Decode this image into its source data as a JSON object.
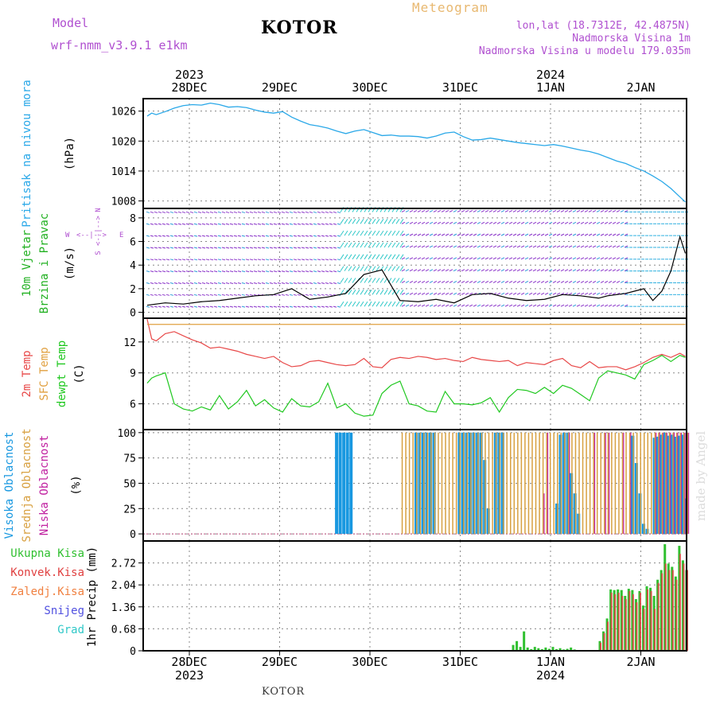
{
  "header": {
    "model_label": "Model",
    "model_name": "wrf-nmm_v3.9.1  e1km",
    "title": "KOTOR",
    "meteogram": "Meteogram",
    "lonlat": "lon,lat (18.7312E, 42.4875N)",
    "altitude": "Nadmorska Visina 1m",
    "model_altitude": "Nadmorska Visina u modelu 179.035m",
    "footer_title": "KOTOR",
    "watermark": "made by Angel"
  },
  "colors": {
    "pressure": "#2aa8e8",
    "temp": "#e84848",
    "sfc_temp": "#e0a040",
    "dewpt": "#20c820",
    "cloud_high": "#1898e0",
    "cloud_mid": "#d8a040",
    "cloud_low": "#c020a0",
    "precip_total": "#30c030",
    "precip_conv": "#e04040",
    "purple": "#b050d0"
  },
  "axes": {
    "x_top_years": [
      "2023",
      "2024"
    ],
    "x_dates": [
      "28DEC",
      "29DEC",
      "30DEC",
      "31DEC",
      "1JAN",
      "2JAN"
    ],
    "x_bottom_years": [
      "2023",
      "2024"
    ]
  },
  "chart_data": [
    {
      "type": "line",
      "panel": "pressure",
      "ylabel_main": "Pritisak na nivou mora",
      "ylabel_unit": "(hPa)",
      "yticks": [
        "1026",
        "1020",
        "1014",
        "1008"
      ],
      "ylim": [
        1006.5,
        1028.5
      ],
      "x_days": [
        0,
        0.05,
        0.1,
        0.2,
        0.3,
        0.4,
        0.5,
        0.6,
        0.7,
        0.8,
        0.9,
        1.0,
        1.1,
        1.2,
        1.3,
        1.4,
        1.5,
        1.6,
        1.7,
        1.8,
        1.9,
        2.0,
        2.1,
        2.2,
        2.3,
        2.4,
        2.5,
        2.6,
        2.7,
        2.8,
        2.9,
        3.0,
        3.1,
        3.2,
        3.3,
        3.4,
        3.5,
        3.6,
        3.7,
        3.8,
        3.9,
        4.0,
        4.1,
        4.2,
        4.3,
        4.4,
        4.5,
        4.6,
        4.7,
        4.8,
        4.9,
        5.0,
        5.1,
        5.2,
        5.3,
        5.4,
        5.5,
        5.6,
        5.7,
        5.8,
        5.9,
        5.96
      ],
      "series": [
        {
          "name": "Pritisak na nivou mora",
          "values": [
            1025.0,
            1025.6,
            1025.3,
            1025.9,
            1026.6,
            1027.1,
            1027.3,
            1027.2,
            1027.6,
            1027.3,
            1026.8,
            1026.9,
            1026.7,
            1026.2,
            1025.8,
            1025.6,
            1025.9,
            1024.8,
            1024.0,
            1023.3,
            1023.0,
            1022.6,
            1022.0,
            1021.5,
            1022.0,
            1022.3,
            1021.7,
            1021.1,
            1021.2,
            1021.0,
            1021.0,
            1020.9,
            1020.6,
            1021.0,
            1021.6,
            1021.8,
            1020.9,
            1020.2,
            1020.3,
            1020.6,
            1020.3,
            1020.0,
            1019.7,
            1019.5,
            1019.3,
            1019.1,
            1019.3,
            1019.0,
            1018.6,
            1018.2,
            1017.9,
            1017.4,
            1016.7,
            1016.0,
            1015.5,
            1014.7,
            1014.0,
            1013.0,
            1011.9,
            1010.5,
            1008.8,
            1007.8
          ]
        }
      ]
    },
    {
      "type": "line",
      "panel": "wind",
      "ylabel_main": [
        "10m Vjetar",
        "Brzina i Pravac"
      ],
      "ylabel_unit": "(m/s)",
      "compass": [
        "W",
        "<--|-->",
        "E",
        "S",
        "<--|-->",
        "N"
      ],
      "yticks": [
        "8",
        "6",
        "4",
        "2",
        "0"
      ],
      "ylim": [
        -0.5,
        8.8
      ],
      "x_days": [
        0,
        0.2,
        0.4,
        0.6,
        0.8,
        1.0,
        1.2,
        1.4,
        1.6,
        1.8,
        2.0,
        2.2,
        2.4,
        2.6,
        2.8,
        3.0,
        3.2,
        3.4,
        3.6,
        3.8,
        4.0,
        4.2,
        4.4,
        4.6,
        4.8,
        5.0,
        5.1,
        5.2,
        5.3,
        5.4,
        5.5,
        5.6,
        5.7,
        5.8,
        5.9,
        5.96
      ],
      "series": [
        {
          "name": "Brzina i Pravac",
          "values": [
            0.6,
            0.8,
            0.7,
            0.9,
            1.0,
            1.2,
            1.4,
            1.5,
            2.0,
            1.1,
            1.3,
            1.6,
            3.2,
            3.6,
            1.0,
            0.9,
            1.1,
            0.8,
            1.5,
            1.6,
            1.2,
            1.0,
            1.1,
            1.5,
            1.4,
            1.2,
            1.4,
            1.5,
            1.6,
            1.8,
            2.0,
            1.0,
            1.8,
            3.5,
            6.4,
            5.0
          ]
        }
      ]
    },
    {
      "type": "line",
      "panel": "temperature",
      "ylabel_main": [
        "2m Temp",
        "SFC Temp",
        "dewpt Temp"
      ],
      "ylabel_unit": "(C)",
      "yticks": [
        "12",
        "9",
        "6"
      ],
      "ylim": [
        3.5,
        14.3
      ],
      "x_days": [
        0,
        0.05,
        0.1,
        0.2,
        0.3,
        0.4,
        0.5,
        0.6,
        0.7,
        0.8,
        0.9,
        1.0,
        1.1,
        1.2,
        1.3,
        1.4,
        1.5,
        1.6,
        1.7,
        1.8,
        1.9,
        2.0,
        2.1,
        2.2,
        2.3,
        2.4,
        2.5,
        2.6,
        2.7,
        2.8,
        2.9,
        3.0,
        3.1,
        3.2,
        3.3,
        3.4,
        3.5,
        3.6,
        3.7,
        3.8,
        3.9,
        4.0,
        4.1,
        4.2,
        4.3,
        4.4,
        4.5,
        4.6,
        4.7,
        4.8,
        4.9,
        5.0,
        5.1,
        5.2,
        5.3,
        5.4,
        5.5,
        5.6,
        5.7,
        5.8,
        5.9,
        5.96
      ],
      "series": [
        {
          "name": "2m Temp",
          "values": [
            14.2,
            12.3,
            12.1,
            12.8,
            13.0,
            12.6,
            12.2,
            11.9,
            11.4,
            11.5,
            11.3,
            11.1,
            10.8,
            10.6,
            10.4,
            10.6,
            10.0,
            9.6,
            9.7,
            10.1,
            10.2,
            10.0,
            9.8,
            9.7,
            9.8,
            10.4,
            9.6,
            9.5,
            10.3,
            10.5,
            10.4,
            10.6,
            10.5,
            10.3,
            10.4,
            10.2,
            10.1,
            10.5,
            10.3,
            10.2,
            10.1,
            10.2,
            9.7,
            10.0,
            9.9,
            9.8,
            10.2,
            10.4,
            9.7,
            9.5,
            10.1,
            9.5,
            9.6,
            9.6,
            9.3,
            9.6,
            10.0,
            10.5,
            10.8,
            10.5,
            10.9,
            10.6
          ]
        },
        {
          "name": "SFC Temp",
          "values": [
            13.7,
            13.7,
            13.7,
            13.7,
            13.7,
            13.7,
            13.7,
            13.7,
            13.7,
            13.7,
            13.7,
            13.7,
            13.7,
            13.7,
            13.7,
            13.7,
            13.7,
            13.7,
            13.7,
            13.7,
            13.7,
            13.7,
            13.7,
            13.7,
            13.7,
            13.7,
            13.7,
            13.7,
            13.7,
            13.7,
            13.7,
            13.7,
            13.7,
            13.7,
            13.7,
            13.7,
            13.7,
            13.7,
            13.7,
            13.7,
            13.7,
            13.7,
            13.7,
            13.7,
            13.7,
            13.7,
            13.7,
            13.7,
            13.7,
            13.7,
            13.7,
            13.7,
            13.7,
            13.7,
            13.7,
            13.7,
            13.7,
            13.7,
            13.7,
            13.7,
            13.7,
            13.7
          ]
        },
        {
          "name": "dewpt Temp",
          "values": [
            8.0,
            8.5,
            8.7,
            9.0,
            6.0,
            5.5,
            5.3,
            5.7,
            5.4,
            6.8,
            5.5,
            6.2,
            7.3,
            5.8,
            6.4,
            5.6,
            5.2,
            6.5,
            5.8,
            5.7,
            6.2,
            8.0,
            5.6,
            6.0,
            5.1,
            4.8,
            4.9,
            7.0,
            7.8,
            8.2,
            6.0,
            5.8,
            5.3,
            5.2,
            7.2,
            6.0,
            6.0,
            5.9,
            6.1,
            6.6,
            5.2,
            6.6,
            7.4,
            7.3,
            7.0,
            7.6,
            7.0,
            7.8,
            7.5,
            6.9,
            6.3,
            8.5,
            9.2,
            9.0,
            8.8,
            8.4,
            9.8,
            10.2,
            10.7,
            10.1,
            10.7,
            10.5
          ]
        }
      ]
    },
    {
      "type": "bar",
      "panel": "clouds",
      "ylabel_main": [
        "Visoka Oblacnost",
        "Srednja Oblacnost",
        "Niska Oblacnost"
      ],
      "ylabel_unit": "(%)",
      "yticks": [
        "100",
        "75",
        "50",
        "25",
        "0"
      ],
      "ylim": [
        -7,
        103
      ],
      "x_days": [
        2.08,
        2.12,
        2.16,
        2.2,
        2.24,
        2.8,
        2.84,
        2.88,
        2.92,
        2.96,
        3.0,
        3.04,
        3.08,
        3.12,
        3.16,
        3.2,
        3.24,
        3.28,
        3.32,
        3.36,
        3.4,
        3.44,
        3.48,
        3.52,
        3.56,
        3.6,
        3.64,
        3.68,
        3.72,
        3.76,
        3.8,
        3.84,
        3.88,
        3.92,
        3.96,
        4.0,
        4.04,
        4.08,
        4.12,
        4.16,
        4.2,
        4.24,
        4.28,
        4.32,
        4.36,
        4.4,
        4.44,
        4.48,
        4.52,
        4.56,
        4.6,
        4.64,
        4.68,
        4.72,
        4.76,
        4.8,
        4.84,
        4.88,
        4.92,
        4.96,
        5.0,
        5.04,
        5.08,
        5.12,
        5.16,
        5.2,
        5.24,
        5.28,
        5.32,
        5.36,
        5.4,
        5.44,
        5.48,
        5.52,
        5.56,
        5.6,
        5.64,
        5.68,
        5.72,
        5.76,
        5.8,
        5.84,
        5.88,
        5.92,
        5.96
      ],
      "series": [
        {
          "name": "Visoka Oblacnost",
          "values": [
            100,
            100,
            100,
            100,
            100,
            0,
            0,
            0,
            0,
            100,
            100,
            100,
            100,
            100,
            100,
            0,
            0,
            0,
            0,
            0,
            0,
            100,
            100,
            100,
            100,
            100,
            100,
            100,
            73,
            25,
            0,
            100,
            100,
            100,
            0,
            0,
            0,
            0,
            0,
            0,
            0,
            0,
            0,
            0,
            0,
            0,
            0,
            0,
            30,
            98,
            100,
            100,
            60,
            40,
            20,
            0,
            0,
            0,
            0,
            0,
            0,
            0,
            0,
            0,
            0,
            0,
            0,
            0,
            0,
            97,
            70,
            40,
            10,
            5,
            0,
            95,
            96,
            98,
            100,
            97,
            98,
            96,
            97,
            98,
            35
          ]
        },
        {
          "name": "Srednja Oblacnost",
          "values": [
            0,
            0,
            0,
            0,
            0,
            100,
            100,
            100,
            100,
            100,
            100,
            100,
            100,
            100,
            100,
            100,
            100,
            100,
            100,
            100,
            100,
            100,
            100,
            100,
            100,
            100,
            100,
            100,
            100,
            100,
            100,
            100,
            100,
            100,
            100,
            100,
            100,
            100,
            100,
            100,
            100,
            100,
            100,
            100,
            100,
            100,
            100,
            100,
            100,
            100,
            100,
            100,
            100,
            100,
            100,
            100,
            100,
            100,
            100,
            100,
            100,
            100,
            100,
            100,
            100,
            100,
            100,
            100,
            100,
            100,
            100,
            100,
            100,
            100,
            100,
            100,
            100,
            100,
            100,
            100,
            100,
            100,
            100,
            100,
            100
          ]
        },
        {
          "name": "Niska Oblacnost",
          "values": [
            0,
            0,
            0,
            0,
            0,
            0,
            0,
            0,
            0,
            0,
            0,
            0,
            0,
            0,
            0,
            0,
            0,
            0,
            0,
            0,
            0,
            0,
            0,
            0,
            0,
            0,
            0,
            0,
            0,
            0,
            0,
            0,
            0,
            0,
            0,
            0,
            0,
            0,
            0,
            0,
            0,
            0,
            0,
            0,
            40,
            100,
            0,
            0,
            0,
            0,
            0,
            100,
            0,
            0,
            0,
            0,
            0,
            0,
            100,
            0,
            0,
            100,
            100,
            0,
            0,
            0,
            100,
            0,
            100,
            0,
            0,
            0,
            0,
            0,
            0,
            100,
            100,
            100,
            100,
            100,
            100,
            100,
            100,
            100,
            100
          ]
        }
      ]
    },
    {
      "type": "bar",
      "panel": "precip",
      "legend": [
        "Ukupna Kisa",
        "Konvek.Kisa",
        "Zaledj.Kisa",
        "Snijeg",
        "Grad"
      ],
      "legend_colors": [
        "#30c030",
        "#e04040",
        "#f08040",
        "#5050e0",
        "#30c8c8"
      ],
      "ylabel_main": "1hr Precip (mm)",
      "yticks": [
        "2.72",
        "2.04",
        "1.36",
        "0.68",
        "0"
      ],
      "ylim": [
        0,
        3.4
      ],
      "x_days": [
        4.04,
        4.08,
        4.12,
        4.16,
        4.2,
        4.24,
        4.28,
        4.32,
        4.36,
        4.4,
        4.44,
        4.48,
        4.52,
        4.56,
        4.6,
        4.64,
        4.68,
        4.72,
        5.0,
        5.04,
        5.08,
        5.12,
        5.16,
        5.2,
        5.24,
        5.28,
        5.32,
        5.36,
        5.4,
        5.44,
        5.48,
        5.52,
        5.56,
        5.6,
        5.64,
        5.68,
        5.72,
        5.76,
        5.8,
        5.84,
        5.88,
        5.92,
        5.96
      ],
      "series": [
        {
          "name": "Ukupna Kisa",
          "values": [
            0.18,
            0.3,
            0.12,
            0.6,
            0.1,
            0.05,
            0.12,
            0.08,
            0.05,
            0.1,
            0.06,
            0.12,
            0.05,
            0.08,
            0.04,
            0.06,
            0.1,
            0.04,
            0.3,
            0.6,
            1.0,
            1.9,
            1.88,
            1.9,
            1.88,
            1.7,
            1.92,
            1.88,
            1.6,
            1.85,
            1.4,
            2.0,
            1.95,
            1.7,
            2.2,
            2.5,
            3.3,
            2.7,
            2.6,
            2.3,
            3.25,
            2.8,
            2.5
          ]
        },
        {
          "name": "Konvek.Kisa",
          "values": [
            0,
            0,
            0,
            0,
            0,
            0,
            0,
            0,
            0,
            0,
            0,
            0,
            0,
            0,
            0,
            0,
            0,
            0,
            0.25,
            0.55,
            0.9,
            1.8,
            1.75,
            1.8,
            1.7,
            1.6,
            1.85,
            1.75,
            1.5,
            1.8,
            1.3,
            1.9,
            1.85,
            1.3,
            2.1,
            2.4,
            2.7,
            2.5,
            2.5,
            2.2,
            3.0,
            2.7,
            2.5
          ]
        }
      ]
    }
  ]
}
